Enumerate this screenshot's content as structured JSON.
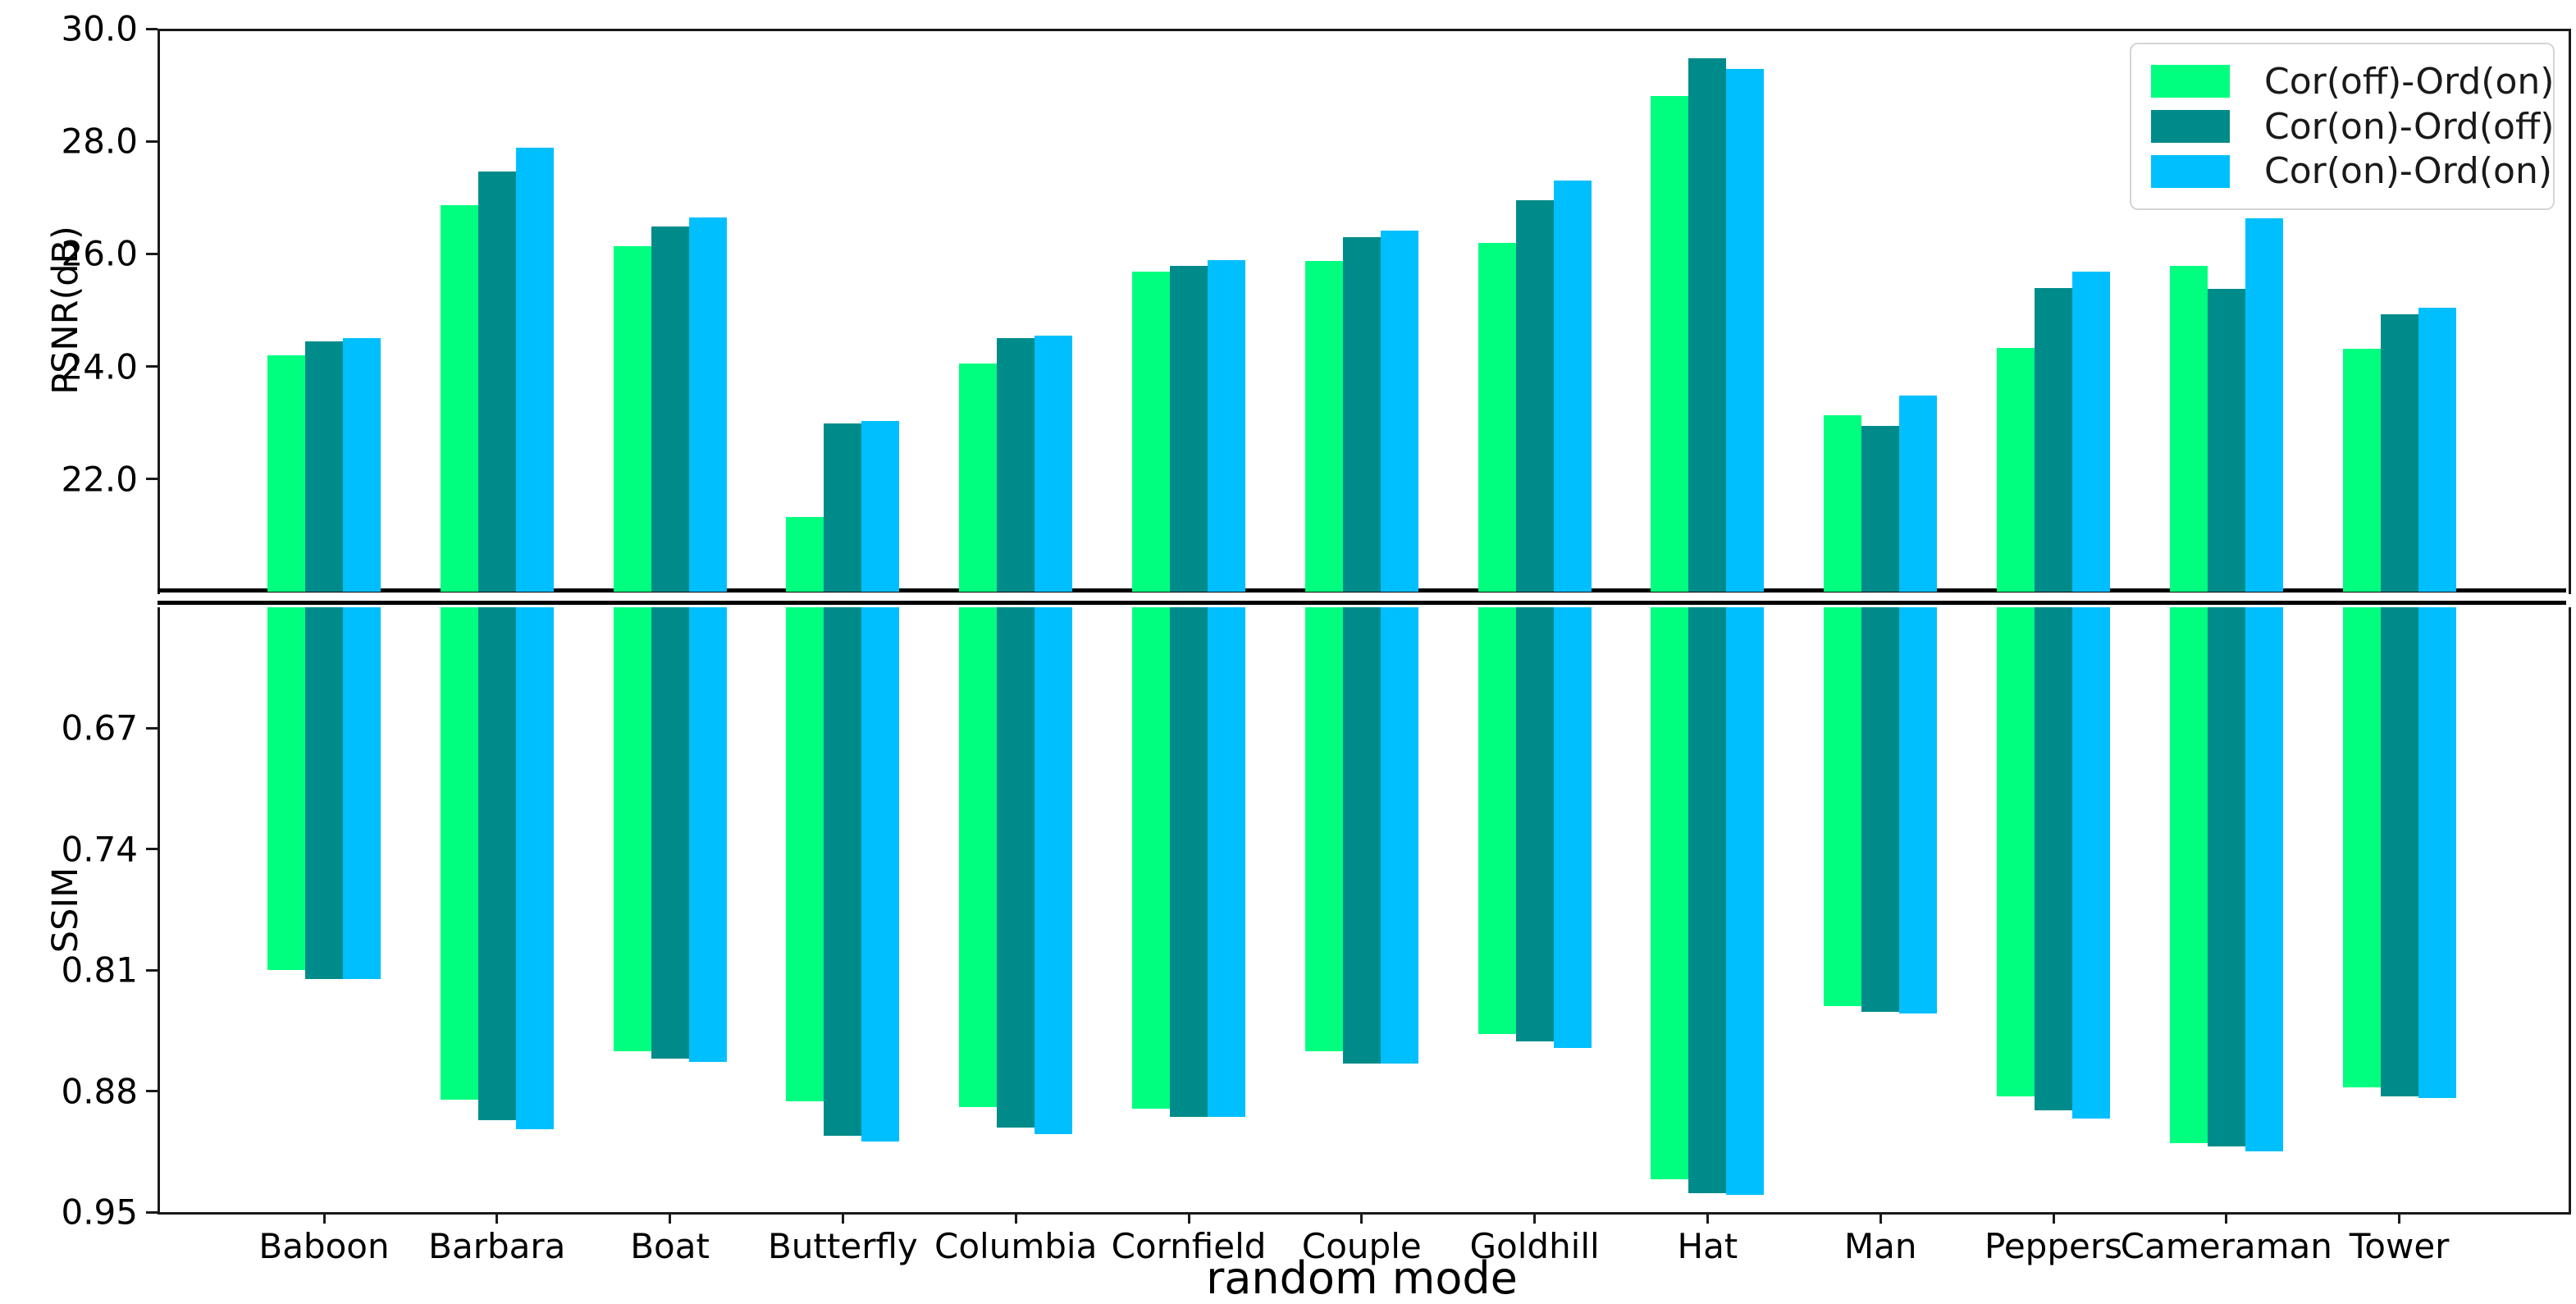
{
  "chart_data": {
    "type": "bar",
    "categories": [
      "Baboon",
      "Barbara",
      "Boat",
      "Butterfly",
      "Columbia",
      "Cornfield",
      "Couple",
      "Goldhill",
      "Hat",
      "Man",
      "Peppers",
      "Cameraman",
      "Tower"
    ],
    "xlabel": "random mode",
    "legend": {
      "position": "upper right",
      "entries": [
        {
          "label": "Cor(off)-Ord(on)",
          "color": "#00FF7F"
        },
        {
          "label": "Cor(on)-Ord(off)",
          "color": "#008B8B"
        },
        {
          "label": "Cor(on)-Ord(on)",
          "color": "#00BFFF"
        }
      ]
    },
    "panels": [
      {
        "name": "psnr",
        "ylabel": "PSNR(dB)",
        "ylim": [
          20.0,
          30.0
        ],
        "inverted": false,
        "yticks": [
          30.0,
          28.0,
          26.0,
          24.0,
          22.0
        ],
        "ytick_labels": [
          "30.0",
          "28.0",
          "26.0",
          "24.0",
          "22.0"
        ],
        "series": [
          {
            "name": "Cor(off)-Ord(on)",
            "color": "#00FF7F",
            "values": [
              24.2,
              26.87,
              26.13,
              21.33,
              24.05,
              25.69,
              25.88,
              26.19,
              28.8,
              23.13,
              24.33,
              25.78,
              24.31
            ]
          },
          {
            "name": "Cor(on)-Ord(off)",
            "color": "#008B8B",
            "values": [
              24.45,
              27.46,
              26.48,
              22.99,
              24.5,
              25.79,
              26.3,
              26.96,
              29.47,
              22.94,
              25.4,
              25.38,
              24.93
            ]
          },
          {
            "name": "Cor(on)-Ord(on)",
            "color": "#00BFFF",
            "values": [
              24.5,
              27.88,
              26.64,
              23.03,
              24.55,
              25.89,
              26.42,
              27.31,
              29.29,
              23.49,
              25.68,
              26.63,
              25.05
            ]
          }
        ]
      },
      {
        "name": "ssim",
        "ylabel": "SSIM",
        "ylim": [
          0.6,
          0.95
        ],
        "inverted": true,
        "yticks": [
          0.67,
          0.74,
          0.81,
          0.88,
          0.95
        ],
        "ytick_labels": [
          "0.67",
          "0.74",
          "0.81",
          "0.88",
          "0.95"
        ],
        "series": [
          {
            "name": "Cor(off)-Ord(on)",
            "color": "#00FF7F",
            "values": [
              0.81,
              0.885,
              0.857,
              0.886,
              0.889,
              0.89,
              0.857,
              0.847,
              0.931,
              0.831,
              0.883,
              0.91,
              0.878
            ]
          },
          {
            "name": "Cor(on)-Ord(off)",
            "color": "#008B8B",
            "values": [
              0.815,
              0.897,
              0.861,
              0.906,
              0.901,
              0.895,
              0.864,
              0.851,
              0.939,
              0.834,
              0.891,
              0.912,
              0.883
            ]
          },
          {
            "name": "Cor(on)-Ord(on)",
            "color": "#00BFFF",
            "values": [
              0.815,
              0.902,
              0.863,
              0.909,
              0.905,
              0.895,
              0.864,
              0.855,
              0.94,
              0.835,
              0.896,
              0.915,
              0.884
            ]
          }
        ]
      }
    ]
  },
  "colors": {
    "axis": "#1a1a1a",
    "separator": "#000000",
    "background": "#ffffff",
    "series_green": "#00FF7F",
    "series_teal": "#008B8B",
    "series_cyan": "#00BFFF"
  }
}
